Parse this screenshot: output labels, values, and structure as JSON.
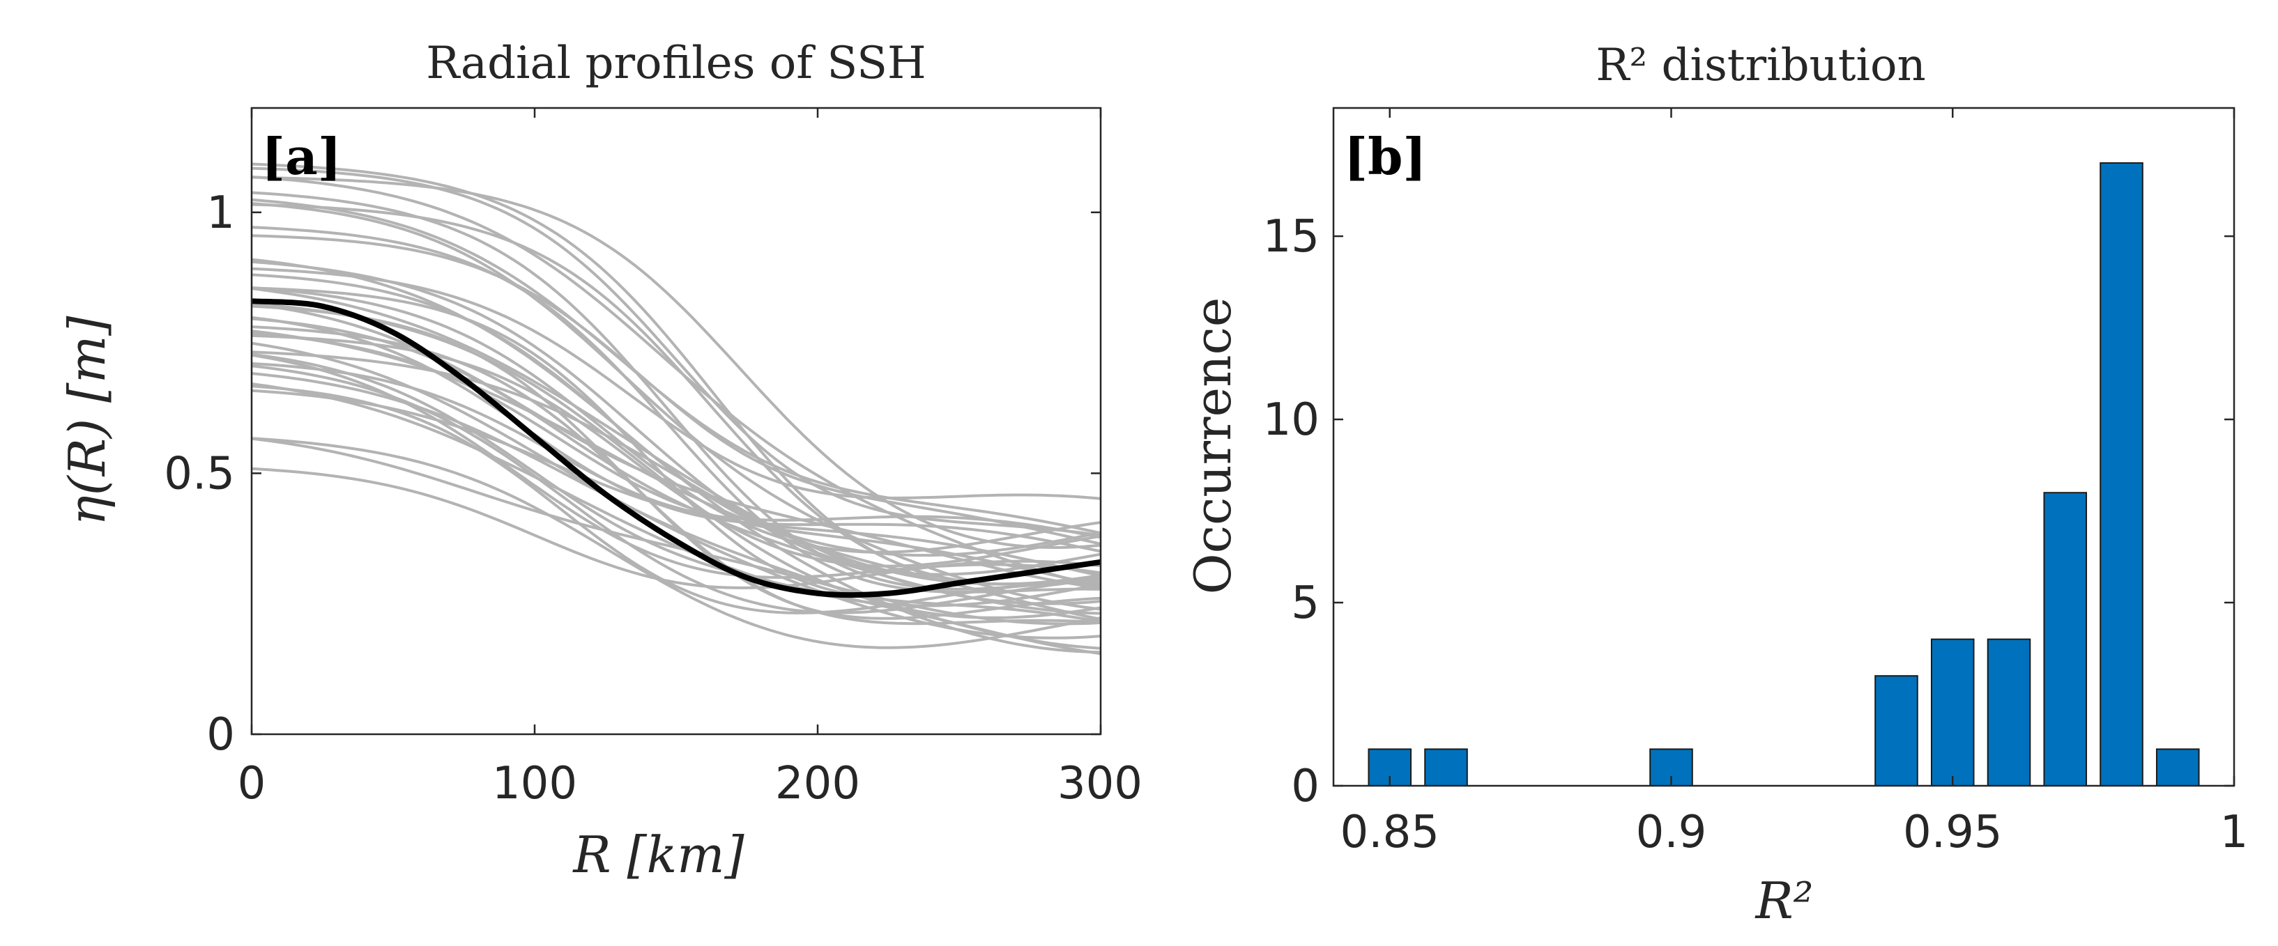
{
  "chart_data": [
    {
      "type": "line",
      "title": "Radial profiles of SSH",
      "panel_label": "[a]",
      "xlabel": "R [km]",
      "ylabel": "η(R) [m]",
      "xlim": [
        0,
        300
      ],
      "ylim": [
        0,
        1.2
      ],
      "xticks": [
        0,
        100,
        200,
        300
      ],
      "yticks": [
        0,
        0.5,
        1
      ],
      "xtick_labels": [
        "0",
        "100",
        "200",
        "300"
      ],
      "ytick_labels": [
        "0",
        "0.5",
        "1"
      ],
      "colors": {
        "individual": "#b3b3b3",
        "mean": "#000000"
      },
      "mean_profile": {
        "name": "mean",
        "x": [
          0,
          25,
          50,
          75,
          100,
          125,
          150,
          175,
          200,
          225,
          250,
          275,
          300
        ],
        "y": [
          0.83,
          0.82,
          0.77,
          0.68,
          0.57,
          0.46,
          0.37,
          0.3,
          0.27,
          0.27,
          0.29,
          0.31,
          0.33
        ]
      },
      "profile_params": [
        {
          "a": 1.1,
          "b": 0.27,
          "r0": 160,
          "w": 34
        },
        {
          "a": 1.09,
          "b": 0.33,
          "r0": 155,
          "w": 32
        },
        {
          "a": 1.08,
          "b": 0.3,
          "r0": 150,
          "w": 36
        },
        {
          "a": 1.07,
          "b": 0.39,
          "r0": 165,
          "w": 30
        },
        {
          "a": 1.05,
          "b": 0.25,
          "r0": 145,
          "w": 35
        },
        {
          "a": 1.04,
          "b": 0.35,
          "r0": 140,
          "w": 38
        },
        {
          "a": 1.03,
          "b": 0.28,
          "r0": 135,
          "w": 33
        },
        {
          "a": 1.02,
          "b": 0.31,
          "r0": 155,
          "w": 31
        },
        {
          "a": 0.98,
          "b": 0.22,
          "r0": 150,
          "w": 34
        },
        {
          "a": 0.96,
          "b": 0.36,
          "r0": 145,
          "w": 30
        },
        {
          "a": 0.93,
          "b": 0.2,
          "r0": 130,
          "w": 36
        },
        {
          "a": 0.92,
          "b": 0.33,
          "r0": 125,
          "w": 34
        },
        {
          "a": 0.9,
          "b": 0.4,
          "r0": 140,
          "w": 35
        },
        {
          "a": 0.89,
          "b": 0.24,
          "r0": 135,
          "w": 32
        },
        {
          "a": 0.88,
          "b": 0.29,
          "r0": 120,
          "w": 38
        },
        {
          "a": 0.87,
          "b": 0.37,
          "r0": 115,
          "w": 33
        },
        {
          "a": 0.86,
          "b": 0.18,
          "r0": 145,
          "w": 30
        },
        {
          "a": 0.85,
          "b": 0.32,
          "r0": 110,
          "w": 36
        },
        {
          "a": 0.84,
          "b": 0.26,
          "r0": 125,
          "w": 34
        },
        {
          "a": 0.83,
          "b": 0.21,
          "r0": 130,
          "w": 32
        },
        {
          "a": 0.82,
          "b": 0.34,
          "r0": 105,
          "w": 35
        },
        {
          "a": 0.81,
          "b": 0.28,
          "r0": 115,
          "w": 31
        },
        {
          "a": 0.8,
          "b": 0.38,
          "r0": 100,
          "w": 37
        },
        {
          "a": 0.79,
          "b": 0.16,
          "r0": 140,
          "w": 34
        },
        {
          "a": 0.78,
          "b": 0.3,
          "r0": 120,
          "w": 33
        },
        {
          "a": 0.78,
          "b": 0.23,
          "r0": 105,
          "w": 36
        },
        {
          "a": 0.77,
          "b": 0.35,
          "r0": 125,
          "w": 30
        },
        {
          "a": 0.76,
          "b": 0.27,
          "r0": 95,
          "w": 38
        },
        {
          "a": 0.75,
          "b": 0.19,
          "r0": 110,
          "w": 34
        },
        {
          "a": 0.74,
          "b": 0.33,
          "r0": 130,
          "w": 32
        },
        {
          "a": 0.73,
          "b": 0.25,
          "r0": 100,
          "w": 35
        },
        {
          "a": 0.72,
          "b": 0.36,
          "r0": 115,
          "w": 33
        },
        {
          "a": 0.71,
          "b": 0.21,
          "r0": 120,
          "w": 36
        },
        {
          "a": 0.7,
          "b": 0.29,
          "r0": 90,
          "w": 34
        },
        {
          "a": 0.68,
          "b": 0.24,
          "r0": 105,
          "w": 31
        },
        {
          "a": 0.67,
          "b": 0.31,
          "r0": 125,
          "w": 37
        },
        {
          "a": 0.59,
          "b": 0.26,
          "r0": 95,
          "w": 35
        },
        {
          "a": 0.58,
          "b": 0.2,
          "r0": 110,
          "w": 33
        },
        {
          "a": 0.52,
          "b": 0.28,
          "r0": 100,
          "w": 36
        }
      ]
    },
    {
      "type": "bar",
      "title": "R² distribution",
      "panel_label": "[b]",
      "xlabel": "R²",
      "ylabel": "Occurrence",
      "xlim": [
        0.84,
        1.0
      ],
      "ylim": [
        0,
        18.5
      ],
      "bar_width": 0.0075,
      "xticks": [
        0.85,
        0.9,
        0.95,
        1
      ],
      "yticks": [
        0,
        5,
        10,
        15
      ],
      "xtick_labels": [
        "0.85",
        "0.9",
        "0.95",
        "1"
      ],
      "ytick_labels": [
        "0",
        "5",
        "10",
        "15"
      ],
      "color": "#0072bd",
      "x": [
        0.85,
        0.86,
        0.9,
        0.94,
        0.95,
        0.96,
        0.97,
        0.98,
        0.99
      ],
      "values": [
        1,
        1,
        1,
        3,
        4,
        4,
        8,
        17,
        1
      ]
    }
  ]
}
